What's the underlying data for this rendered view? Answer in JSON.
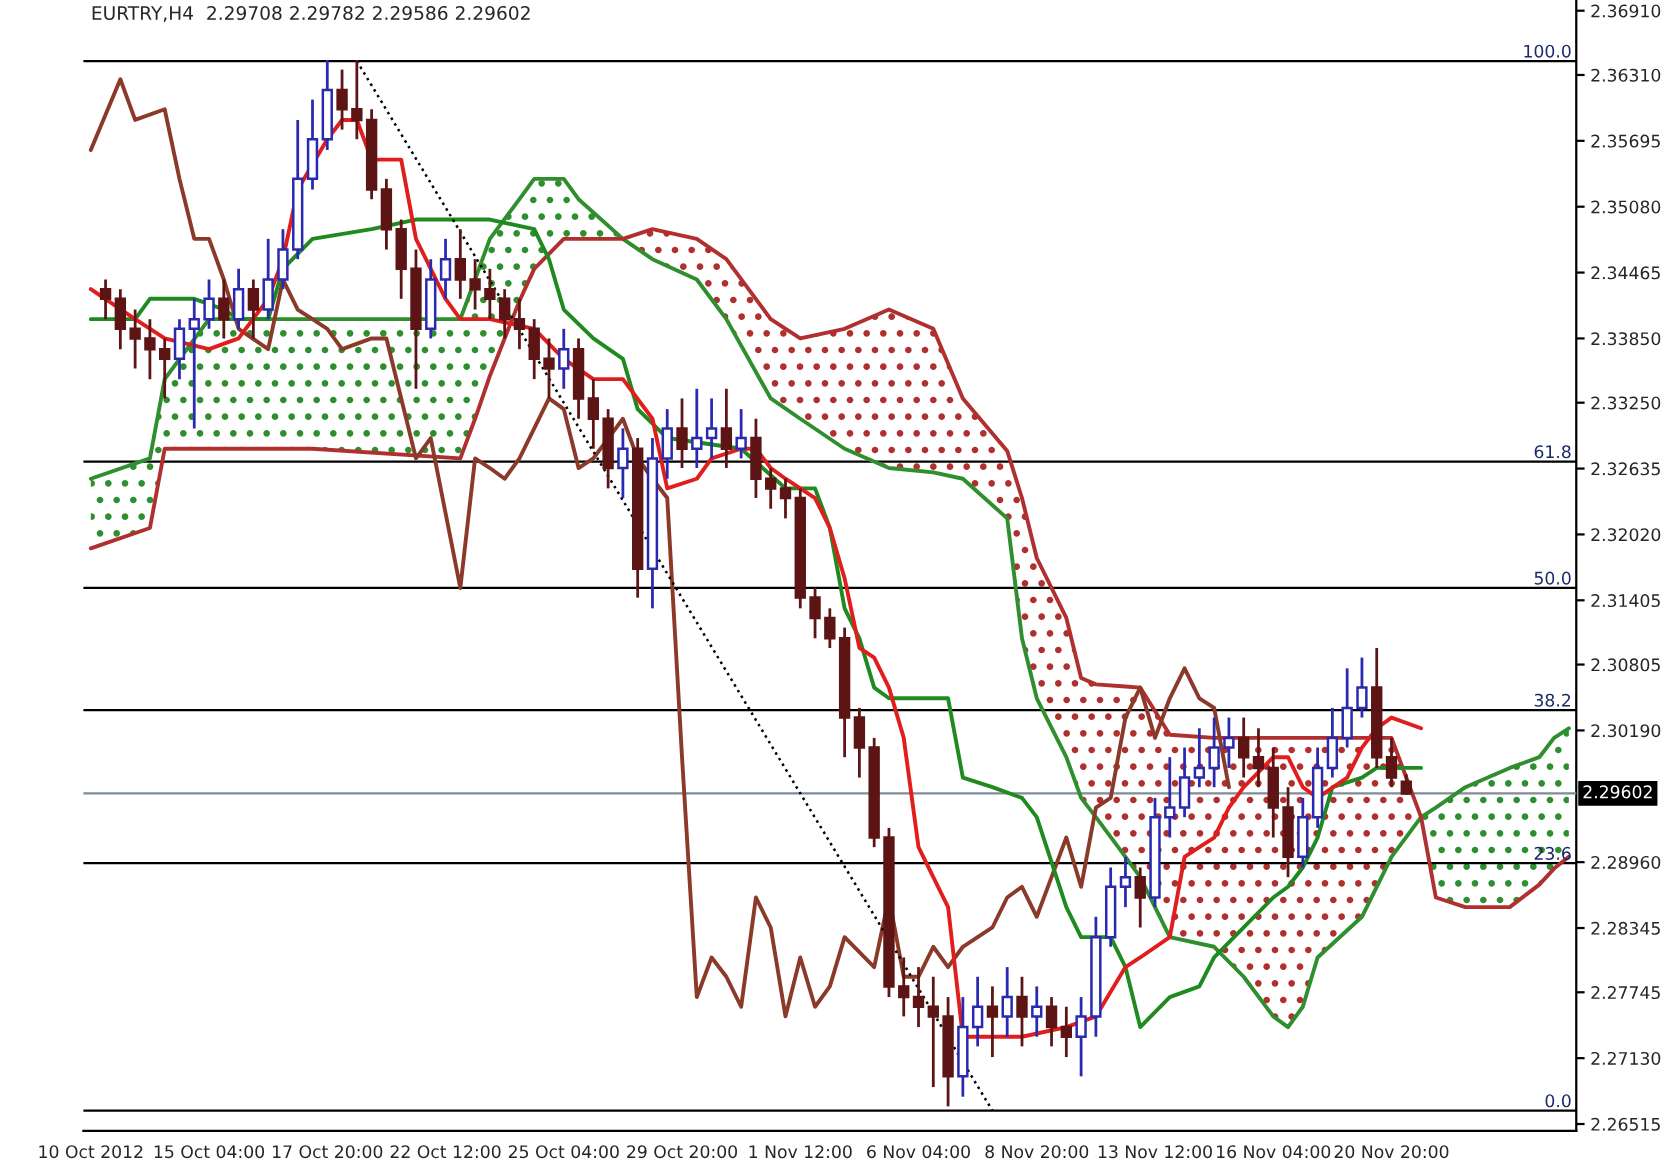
{
  "chart_data": {
    "type": "candlestick",
    "title": "EURTRY,H4  2.29708 2.29782 2.29586 2.29602",
    "colors": [
      null,
      "#5c1414",
      "#5c1414",
      "#5c1414",
      "#5c1414",
      "#5c1414",
      "#2a2ab0",
      "#2a2ab0",
      "#2a2ab0",
      "#5c1414",
      "#2a2ab0",
      "#5c1414",
      "#2a2ab0",
      "#2a2ab0",
      "#2a2ab0",
      "#2a2ab0",
      "#2a2ab0",
      "#5c1414",
      "#5c1414",
      "#5c1414",
      "#5c1414",
      "#5c1414",
      "#5c1414",
      "#2a2ab0",
      "#2a2ab0",
      "#5c1414",
      "#5c1414",
      "#5c1414",
      "#5c1414",
      "#5c1414",
      "#5c1414",
      "#5c1414",
      "#2a2ab0",
      "#5c1414",
      "#5c1414",
      "#5c1414",
      "#2a2ab0",
      "#5c1414",
      "#2a2ab0",
      "#2a2ab0",
      "#5c1414",
      "#2a2ab0",
      "#2a2ab0",
      "#5c1414",
      "#2a2ab0",
      "#5c1414",
      "#5c1414",
      "#5c1414",
      "#5c1414",
      "#5c1414",
      "#5c1414",
      "#5c1414",
      "#5c1414",
      "#5c1414",
      "#5c1414",
      "#5c1414",
      "#5c1414",
      "#5c1414",
      "#5c1414",
      "#2a2ab0",
      "#2a2ab0",
      "#5c1414",
      "#2a2ab0",
      "#5c1414",
      "#2a2ab0",
      "#5c1414",
      "#5c1414",
      "#2a2ab0",
      "#2a2ab0",
      "#2a2ab0",
      "#2a2ab0",
      "#5c1414",
      "#2a2ab0",
      "#2a2ab0",
      "#2a2ab0",
      "#2a2ab0",
      "#2a2ab0",
      "#2a2ab0",
      "#5c1414",
      "#5c1414",
      "#5c1414",
      "#5c1414",
      "#2a2ab0",
      "#2a2ab0",
      "#2a2ab0",
      "#2a2ab0",
      "#2a2ab0",
      "#5c1414",
      "#5c1414",
      "#5c1414",
      null,
      null,
      null,
      null,
      null,
      null,
      null,
      null,
      null,
      null,
      null
    ],
    "categories": [
      "10 Oct 2012",
      null,
      null,
      null,
      null,
      null,
      null,
      null,
      "15 Oct 04:00",
      null,
      null,
      null,
      null,
      null,
      null,
      null,
      "17 Oct 20:00",
      null,
      null,
      null,
      null,
      null,
      null,
      null,
      "22 Oct 12:00",
      null,
      null,
      null,
      null,
      null,
      null,
      null,
      "25 Oct 04:00",
      null,
      null,
      null,
      null,
      null,
      null,
      null,
      "29 Oct 20:00",
      null,
      null,
      null,
      null,
      null,
      null,
      null,
      "1 Nov 12:00",
      null,
      null,
      null,
      null,
      null,
      null,
      null,
      "6 Nov 04:00",
      null,
      null,
      null,
      null,
      null,
      null,
      null,
      "8 Nov 20:00",
      null,
      null,
      null,
      null,
      null,
      null,
      null,
      "13 Nov 12:00",
      null,
      null,
      null,
      null,
      null,
      null,
      null,
      "16 Nov 04:00",
      null,
      null,
      null,
      null,
      null,
      null,
      null,
      "20 Nov 20:00",
      null,
      null,
      null,
      null,
      null,
      null,
      null,
      null,
      null,
      null,
      null,
      null
    ],
    "ohlc": [
      null,
      [
        2.3431,
        2.344,
        2.3403,
        2.3422
      ],
      [
        2.3422,
        2.3431,
        2.3375,
        2.3394
      ],
      [
        2.3394,
        2.3412,
        2.3357,
        2.3385
      ],
      [
        2.3385,
        2.3403,
        2.3347,
        2.3375
      ],
      [
        2.3375,
        2.3385,
        2.3329,
        2.3366
      ],
      [
        2.3366,
        2.3403,
        2.3347,
        2.3394
      ],
      [
        2.3394,
        2.3422,
        2.3301,
        2.3403
      ],
      [
        2.3403,
        2.344,
        2.3394,
        2.3422
      ],
      [
        2.3422,
        2.344,
        2.3385,
        2.3403
      ],
      [
        2.3403,
        2.345,
        2.3394,
        2.3431
      ],
      [
        2.3431,
        2.344,
        2.3385,
        2.3412
      ],
      [
        2.3412,
        2.3478,
        2.3403,
        2.344
      ],
      [
        2.344,
        2.3487,
        2.3431,
        2.3468
      ],
      [
        2.3468,
        2.3589,
        2.3459,
        2.3534
      ],
      [
        2.3534,
        2.3608,
        2.3524,
        2.3571
      ],
      [
        2.3571,
        2.3645,
        2.3561,
        2.3617
      ],
      [
        2.3617,
        2.3636,
        2.358,
        2.3599
      ],
      [
        2.3599,
        2.3645,
        2.3571,
        2.3589
      ],
      [
        2.3589,
        2.3599,
        2.3515,
        2.3524
      ],
      [
        2.3524,
        2.3534,
        2.3468,
        2.3487
      ],
      [
        2.3487,
        2.3496,
        2.3422,
        2.345
      ],
      [
        2.345,
        2.3468,
        2.3338,
        2.3394
      ],
      [
        2.3394,
        2.3459,
        2.3385,
        2.344
      ],
      [
        2.344,
        2.3478,
        2.3422,
        2.3459
      ],
      [
        2.3459,
        2.3487,
        2.3422,
        2.344
      ],
      [
        2.344,
        2.3459,
        2.3412,
        2.3431
      ],
      [
        2.3431,
        2.345,
        2.3403,
        2.3422
      ],
      [
        2.3422,
        2.3431,
        2.3385,
        2.3403
      ],
      [
        2.3403,
        2.3422,
        2.3375,
        2.3394
      ],
      [
        2.3394,
        2.3403,
        2.3347,
        2.3366
      ],
      [
        2.3366,
        2.3385,
        2.3329,
        2.3357
      ],
      [
        2.3357,
        2.3394,
        2.3338,
        2.3375
      ],
      [
        2.3375,
        2.3385,
        2.331,
        2.3329
      ],
      [
        2.3329,
        2.3347,
        2.3282,
        2.331
      ],
      [
        2.331,
        2.3319,
        2.3245,
        2.3264
      ],
      [
        2.3264,
        2.3301,
        2.3236,
        2.3282
      ],
      [
        2.3282,
        2.3292,
        2.3143,
        2.317
      ],
      [
        2.317,
        2.3292,
        2.3133,
        2.3273
      ],
      [
        2.3273,
        2.3319,
        2.3254,
        2.3301
      ],
      [
        2.3301,
        2.3329,
        2.3264,
        2.3282
      ],
      [
        2.3282,
        2.3338,
        2.3264,
        2.3292
      ],
      [
        2.3292,
        2.3329,
        2.3273,
        2.3301
      ],
      [
        2.3301,
        2.3338,
        2.3264,
        2.3282
      ],
      [
        2.3282,
        2.3319,
        2.3273,
        2.3292
      ],
      [
        2.3292,
        2.331,
        2.3236,
        2.3254
      ],
      [
        2.3254,
        2.3264,
        2.3226,
        2.3245
      ],
      [
        2.3245,
        2.3254,
        2.3217,
        2.3236
      ],
      [
        2.3236,
        2.3245,
        2.3133,
        2.3143
      ],
      [
        2.3143,
        2.3152,
        2.3105,
        2.3124
      ],
      [
        2.3124,
        2.3133,
        2.3096,
        2.3105
      ],
      [
        2.3105,
        2.3115,
        2.2994,
        2.3031
      ],
      [
        2.3031,
        2.304,
        2.2975,
        2.3003
      ],
      [
        2.3003,
        2.3012,
        2.291,
        2.2919
      ],
      [
        2.2919,
        2.2928,
        2.277,
        2.278
      ],
      [
        2.278,
        2.2807,
        2.2752,
        2.277
      ],
      [
        2.277,
        2.2798,
        2.2742,
        2.2761
      ],
      [
        2.2761,
        2.2789,
        2.2686,
        2.2752
      ],
      [
        2.2752,
        2.277,
        2.2668,
        2.2696
      ],
      [
        2.2696,
        2.277,
        2.2677,
        2.2742
      ],
      [
        2.2742,
        2.2789,
        2.2724,
        2.2761
      ],
      [
        2.2761,
        2.278,
        2.2714,
        2.2752
      ],
      [
        2.2752,
        2.2798,
        2.2733,
        2.277
      ],
      [
        2.277,
        2.2789,
        2.2724,
        2.2752
      ],
      [
        2.2752,
        2.278,
        2.2733,
        2.2761
      ],
      [
        2.2761,
        2.277,
        2.2724,
        2.2742
      ],
      [
        2.2742,
        2.2761,
        2.2714,
        2.2733
      ],
      [
        2.2733,
        2.277,
        2.2696,
        2.2752
      ],
      [
        2.2752,
        2.2845,
        2.2733,
        2.2826
      ],
      [
        2.2826,
        2.2891,
        2.2817,
        2.2873
      ],
      [
        2.2873,
        2.2901,
        2.2854,
        2.2882
      ],
      [
        2.2882,
        2.2891,
        2.2835,
        2.2863
      ],
      [
        2.2863,
        2.2956,
        2.2854,
        2.2938
      ],
      [
        2.2938,
        2.2994,
        2.2919,
        2.2947
      ],
      [
        2.2947,
        2.3003,
        2.2938,
        2.2975
      ],
      [
        2.2975,
        2.3021,
        2.2966,
        2.2984
      ],
      [
        2.2984,
        2.3031,
        2.2966,
        2.3003
      ],
      [
        2.3003,
        2.3031,
        2.2984,
        2.3012
      ],
      [
        2.3012,
        2.3031,
        2.2975,
        2.2994
      ],
      [
        2.2994,
        2.3021,
        2.2966,
        2.2984
      ],
      [
        2.2984,
        2.3003,
        2.2919,
        2.2947
      ],
      [
        2.2947,
        2.2966,
        2.2882,
        2.2901
      ],
      [
        2.2901,
        2.2956,
        2.2891,
        2.2938
      ],
      [
        2.2938,
        2.3003,
        2.2928,
        2.2984
      ],
      [
        2.2984,
        2.304,
        2.2975,
        2.3012
      ],
      [
        2.3012,
        2.3077,
        2.3003,
        2.304
      ],
      [
        2.304,
        2.3087,
        2.3031,
        2.3059
      ],
      [
        2.3059,
        2.3096,
        2.2984,
        2.2994
      ],
      [
        2.2994,
        2.3012,
        2.2966,
        2.2975
      ],
      [
        2.2971,
        2.2978,
        2.2959,
        2.296
      ],
      null,
      null,
      null,
      null,
      null,
      null,
      null,
      null,
      null,
      null,
      null
    ],
    "series": [
      {
        "type": "line",
        "color": "#2f8f2f",
        "upper": [
          2.3254,
          null,
          null,
          null,
          2.3273,
          2.3347,
          null,
          null,
          2.3403,
          null,
          null,
          null,
          null,
          2.3403,
          null,
          2.3403,
          null,
          null,
          null,
          null,
          null,
          null,
          null,
          null,
          null,
          2.3403,
          2.344,
          2.3478,
          null,
          2.3515,
          2.3534,
          null,
          2.3534,
          2.3515,
          null,
          null,
          2.3478,
          null,
          null,
          null,
          null,
          null,
          null,
          null,
          null,
          null,
          null,
          null,
          null,
          null,
          null,
          null,
          null,
          null,
          null,
          null,
          null,
          null,
          null,
          null,
          null,
          null,
          null,
          null,
          null,
          null,
          null,
          null,
          null,
          null,
          null,
          null,
          null,
          null,
          null,
          null,
          null,
          null,
          null,
          null,
          null,
          null,
          null,
          null,
          null,
          null,
          null,
          null,
          null,
          null,
          2.2938,
          2.2947,
          null,
          2.2966,
          null,
          null,
          2.2984,
          null,
          2.2994,
          2.3012,
          2.3021
        ],
        "lower": [
          2.3189,
          null,
          null,
          null,
          2.3208,
          2.3282,
          null,
          null,
          2.3282,
          null,
          null,
          null,
          null,
          2.3282,
          null,
          2.3282,
          null,
          null,
          null,
          null,
          null,
          null,
          null,
          null,
          null,
          2.3273,
          2.331,
          2.335,
          null,
          2.342,
          2.345,
          null,
          2.3478,
          2.3478,
          null,
          null,
          2.3478,
          null,
          null,
          null,
          null,
          null,
          null,
          null,
          null,
          null,
          null,
          null,
          null,
          null,
          null,
          null,
          null,
          null,
          null,
          null,
          null,
          null,
          null,
          null,
          null,
          null,
          null,
          null,
          null,
          null,
          null,
          null,
          null,
          null,
          null,
          null,
          null,
          null,
          null,
          null,
          null,
          null,
          null,
          null,
          null,
          null,
          null,
          null,
          null,
          null,
          null,
          null,
          null,
          null,
          2.2938,
          2.2863,
          null,
          2.2854,
          null,
          null,
          2.2854,
          null,
          2.2875,
          2.289,
          2.2901
        ],
        "values": [
          2.3254,
          null,
          null,
          null,
          2.3273,
          2.3347,
          null,
          null,
          2.3403,
          null,
          null,
          null,
          null,
          2.3403,
          null,
          2.3403,
          null,
          null,
          null,
          null,
          null,
          null,
          null,
          null,
          null,
          2.3403,
          2.344,
          2.3478,
          null,
          2.3515,
          2.3534,
          null,
          2.3534,
          2.3515,
          null,
          null,
          2.3478,
          null,
          2.3459,
          null,
          null,
          2.344,
          null,
          2.3403,
          null,
          null,
          2.3329,
          null,
          2.331,
          null,
          null,
          2.3282,
          null,
          null,
          2.3264,
          null,
          null,
          2.326,
          null,
          2.3254,
          null,
          null,
          2.3217,
          2.3105,
          2.3049,
          null,
          2.2994,
          2.2956,
          2.2938,
          null,
          2.2901,
          2.2882,
          null,
          2.2826,
          null,
          null,
          2.2817,
          null,
          2.2789,
          null,
          2.2752,
          2.2742,
          2.2761,
          2.2807,
          null,
          null,
          2.2845,
          null,
          2.2901,
          null,
          2.2938,
          2.2947,
          null,
          2.2966,
          null,
          null,
          2.2984,
          null,
          2.2994,
          2.3012,
          2.3021
        ]
      },
      {
        "type": "line",
        "color": "#b03030",
        "upper": [
          null,
          null,
          null,
          null,
          null,
          null,
          null,
          null,
          null,
          null,
          null,
          null,
          null,
          null,
          null,
          null,
          null,
          null,
          null,
          null,
          null,
          null,
          null,
          null,
          null,
          null,
          null,
          null,
          null,
          null,
          null,
          null,
          null,
          null,
          null,
          null,
          2.3478,
          null,
          2.3487,
          null,
          null,
          2.3478,
          null,
          2.3459,
          null,
          null,
          2.3403,
          null,
          2.3385,
          null,
          null,
          2.3394,
          null,
          null,
          2.3412,
          null,
          null,
          2.3394,
          null,
          2.3329,
          null,
          null,
          2.328,
          2.3236,
          2.318,
          null,
          2.3124,
          2.3068,
          2.3062,
          null,
          2.306,
          2.3059,
          null,
          2.3015,
          null,
          null,
          2.3012,
          null,
          2.3012,
          null,
          2.3012,
          2.3012,
          2.3012,
          2.3012,
          null,
          null,
          2.3012,
          null,
          2.3012,
          null,
          2.2938,
          null,
          null,
          null,
          null,
          null,
          null,
          null,
          null,
          null,
          null
        ],
        "lower": [
          null,
          null,
          null,
          null,
          null,
          null,
          null,
          null,
          null,
          null,
          null,
          null,
          null,
          null,
          null,
          null,
          null,
          null,
          null,
          null,
          null,
          null,
          null,
          null,
          null,
          null,
          null,
          null,
          null,
          null,
          null,
          null,
          null,
          null,
          null,
          null,
          2.3478,
          null,
          2.3459,
          null,
          null,
          2.344,
          null,
          2.3403,
          null,
          null,
          2.3329,
          null,
          2.331,
          null,
          null,
          2.3282,
          null,
          null,
          2.3264,
          null,
          null,
          2.326,
          null,
          2.3254,
          null,
          null,
          2.3217,
          2.3105,
          2.3049,
          null,
          2.2994,
          2.2956,
          2.2938,
          null,
          2.2901,
          2.2882,
          null,
          2.2826,
          null,
          null,
          2.2817,
          null,
          2.2789,
          null,
          2.2752,
          2.2742,
          2.2761,
          2.2807,
          null,
          null,
          2.2845,
          null,
          2.2901,
          null,
          2.2938,
          null,
          null,
          null,
          null,
          null,
          null,
          null,
          null,
          null,
          null
        ],
        "values": [
          2.3189,
          null,
          null,
          null,
          2.3208,
          2.3282,
          null,
          null,
          2.3282,
          null,
          null,
          null,
          null,
          2.3282,
          null,
          2.3282,
          null,
          null,
          null,
          null,
          null,
          null,
          null,
          null,
          null,
          2.3273,
          2.331,
          2.335,
          null,
          2.342,
          2.345,
          null,
          2.3478,
          2.3478,
          null,
          null,
          2.3478,
          null,
          2.3487,
          null,
          null,
          2.3478,
          null,
          2.3459,
          null,
          null,
          2.3403,
          null,
          2.3385,
          null,
          null,
          2.3394,
          null,
          null,
          2.3412,
          null,
          null,
          2.3394,
          null,
          2.3329,
          null,
          null,
          2.328,
          2.3236,
          2.318,
          null,
          2.3124,
          2.3068,
          2.3062,
          null,
          2.306,
          2.3059,
          null,
          2.3015,
          null,
          null,
          2.3012,
          null,
          2.3012,
          null,
          2.3012,
          2.3012,
          2.3012,
          2.3012,
          null,
          null,
          2.3012,
          null,
          2.3012,
          null,
          2.2938,
          2.2863,
          null,
          2.2854,
          null,
          null,
          2.2854,
          null,
          2.2875,
          2.289,
          2.2901
        ]
      },
      {
        "type": "line",
        "color": "#8b3a2a",
        "values": [
          2.3561,
          null,
          2.3627,
          2.3589,
          null,
          2.3599,
          2.3534,
          2.3478,
          2.3478,
          2.344,
          2.3394,
          null,
          2.3375,
          2.344,
          2.3412,
          2.3403,
          2.3394,
          2.3375,
          null,
          2.3385,
          2.3385,
          2.3329,
          2.3273,
          2.3292,
          null,
          2.3152,
          2.3273,
          2.3264,
          2.3254,
          2.3273,
          null,
          2.3329,
          2.3319,
          2.3264,
          2.3273,
          null,
          2.331,
          2.3273,
          2.3254,
          2.3236,
          2.2994,
          2.277,
          2.2807,
          2.2789,
          2.2761,
          2.2863,
          2.2835,
          2.2752,
          2.2807,
          2.2761,
          2.278,
          2.2826,
          null,
          2.2798,
          2.2863,
          2.2789,
          2.2789,
          2.2817,
          2.2798,
          2.2817,
          null,
          2.2835,
          2.2863,
          2.2873,
          2.2845,
          2.2882,
          2.2919,
          2.2873,
          2.2947,
          2.2956,
          2.3031,
          2.3059,
          2.3012,
          2.3049,
          2.3077,
          2.3049,
          2.304,
          2.2966,
          null,
          null,
          null,
          null,
          null,
          null,
          null,
          null,
          null,
          null,
          null,
          null,
          null,
          null,
          null,
          null,
          null,
          null,
          null,
          null,
          null,
          null,
          null
        ]
      },
      {
        "type": "line",
        "color": "#1f8a1f",
        "values": [
          2.3403,
          null,
          null,
          2.3403,
          2.3422,
          null,
          null,
          2.3422,
          null,
          2.3412,
          2.3403,
          null,
          2.3403,
          2.345,
          null,
          2.3478,
          null,
          null,
          null,
          2.3487,
          null,
          null,
          2.3496,
          null,
          null,
          null,
          null,
          2.3496,
          null,
          null,
          2.3487,
          2.3459,
          2.3412,
          null,
          2.3385,
          null,
          2.3366,
          2.3319,
          null,
          2.3292,
          null,
          null,
          null,
          null,
          2.3282,
          null,
          null,
          2.3245,
          null,
          2.3245,
          2.3208,
          2.3133,
          2.3105,
          2.3059,
          2.3049,
          null,
          null,
          null,
          2.3049,
          2.2975,
          null,
          2.2966,
          null,
          2.2956,
          2.2938,
          null,
          2.2854,
          2.2826,
          null,
          2.2826,
          2.2798,
          2.2742,
          null,
          2.277,
          null,
          2.278,
          2.2807,
          null,
          2.2835,
          null,
          2.2863,
          2.2873,
          2.2891,
          2.2919,
          2.2966,
          null,
          2.2975,
          2.2984,
          null,
          null,
          2.2984,
          null,
          null,
          null,
          null,
          null,
          null,
          null,
          null,
          null,
          null
        ]
      },
      {
        "type": "line",
        "color": "#e01e1e",
        "values": [
          2.3431,
          null,
          null,
          2.3403,
          null,
          2.3385,
          null,
          null,
          2.3375,
          null,
          2.3385,
          null,
          2.3422,
          2.3459,
          2.3524,
          null,
          2.3571,
          2.3589,
          2.3589,
          2.3552,
          null,
          2.3552,
          2.3478,
          null,
          2.3422,
          2.3403,
          null,
          2.3403,
          null,
          null,
          2.3394,
          null,
          2.3366,
          null,
          2.3347,
          null,
          2.3347,
          null,
          2.331,
          2.3245,
          null,
          2.3254,
          2.3273,
          null,
          2.3282,
          2.3282,
          2.3264,
          2.3254,
          null,
          2.3236,
          2.3208,
          2.3161,
          2.3096,
          2.3087,
          2.3059,
          2.3012,
          2.291,
          2.2882,
          2.2854,
          2.2733,
          null,
          2.2733,
          null,
          2.2733,
          null,
          null,
          2.2742,
          null,
          2.2752,
          null,
          2.2798,
          2.2807,
          null,
          2.2826,
          2.2901,
          2.291,
          2.2919,
          2.2947,
          2.2966,
          null,
          2.2994,
          2.2994,
          2.2966,
          2.2956,
          null,
          2.2975,
          2.3003,
          2.3021,
          2.3031,
          null,
          2.3021,
          null,
          null,
          null,
          null,
          null,
          null,
          null,
          null,
          null,
          null
        ]
      },
      {
        "type": "line",
        "color": "#000000",
        "line_style": "dotted",
        "values": [
          null,
          null,
          null,
          null,
          null,
          null,
          null,
          null,
          null,
          null,
          null,
          null,
          null,
          null,
          null,
          null,
          null,
          null,
          2.3644,
          null,
          null,
          null,
          null,
          null,
          null,
          null,
          null,
          null,
          null,
          null,
          null,
          null,
          null,
          null,
          null,
          null,
          null,
          null,
          null,
          null,
          null,
          null,
          null,
          null,
          null,
          null,
          null,
          null,
          null,
          null,
          null,
          null,
          null,
          null,
          null,
          null,
          null,
          null,
          null,
          null,
          null,
          2.2664,
          null,
          null,
          null,
          null,
          null,
          null,
          null,
          null,
          null,
          null,
          null,
          null,
          null,
          null,
          null,
          null,
          null,
          null,
          null,
          null,
          null,
          null,
          null,
          null,
          null,
          null,
          null,
          null,
          null,
          null,
          null,
          null,
          null,
          null,
          null,
          null,
          null,
          null,
          null
        ]
      }
    ],
    "ref_lines": [
      {
        "axis": "y",
        "value": 2.3644,
        "color": "#000000"
      },
      {
        "axis": "y",
        "value": 2.327,
        "color": "#000000"
      },
      {
        "axis": "y",
        "value": 2.3152,
        "color": "#000000"
      },
      {
        "axis": "y",
        "value": 2.3038,
        "color": "#000000"
      },
      {
        "axis": "y",
        "value": 2.2895,
        "color": "#000000"
      },
      {
        "axis": "y",
        "value": 2.2664,
        "color": "#000000"
      },
      {
        "axis": "y",
        "value": 2.29602,
        "label": "2.29602",
        "color": "#7f8c9a"
      }
    ],
    "annotations": [
      {
        "text": "100.0",
        "y": 2.3644
      },
      {
        "text": "61.8",
        "y": 2.327
      },
      {
        "text": "50.0",
        "y": 2.3152
      },
      {
        "text": "38.2",
        "y": 2.3038
      },
      {
        "text": "23.6",
        "y": 2.2895
      },
      {
        "text": "0.0",
        "y": 2.2664
      }
    ],
    "ylim": [
      2.2645,
      2.3701
    ],
    "yticks": [
      {
        "value": 2.3691,
        "label": "2.36910"
      },
      {
        "value": 2.3631,
        "label": "2.36310"
      },
      {
        "value": 2.35695,
        "label": "2.35695"
      },
      {
        "value": 2.3508,
        "label": "2.35080"
      },
      {
        "value": 2.34465,
        "label": "2.34465"
      },
      {
        "value": 2.3385,
        "label": "2.33850"
      },
      {
        "value": 2.3325,
        "label": "2.33250"
      },
      {
        "value": 2.32635,
        "label": "2.32635"
      },
      {
        "value": 2.3202,
        "label": "2.32020"
      },
      {
        "value": 2.31405,
        "label": "2.31405"
      },
      {
        "value": 2.30805,
        "label": "2.30805"
      },
      {
        "value": 2.3019,
        "label": "2.30190"
      },
      {
        "value": 2.2896,
        "label": "2.28960"
      },
      {
        "value": 2.28345,
        "label": "2.28345"
      },
      {
        "value": 2.27745,
        "label": "2.27745"
      },
      {
        "value": 2.2713,
        "label": "2.27130"
      },
      {
        "value": 2.26515,
        "label": "2.26515"
      }
    ],
    "grid": false,
    "legend": false
  }
}
